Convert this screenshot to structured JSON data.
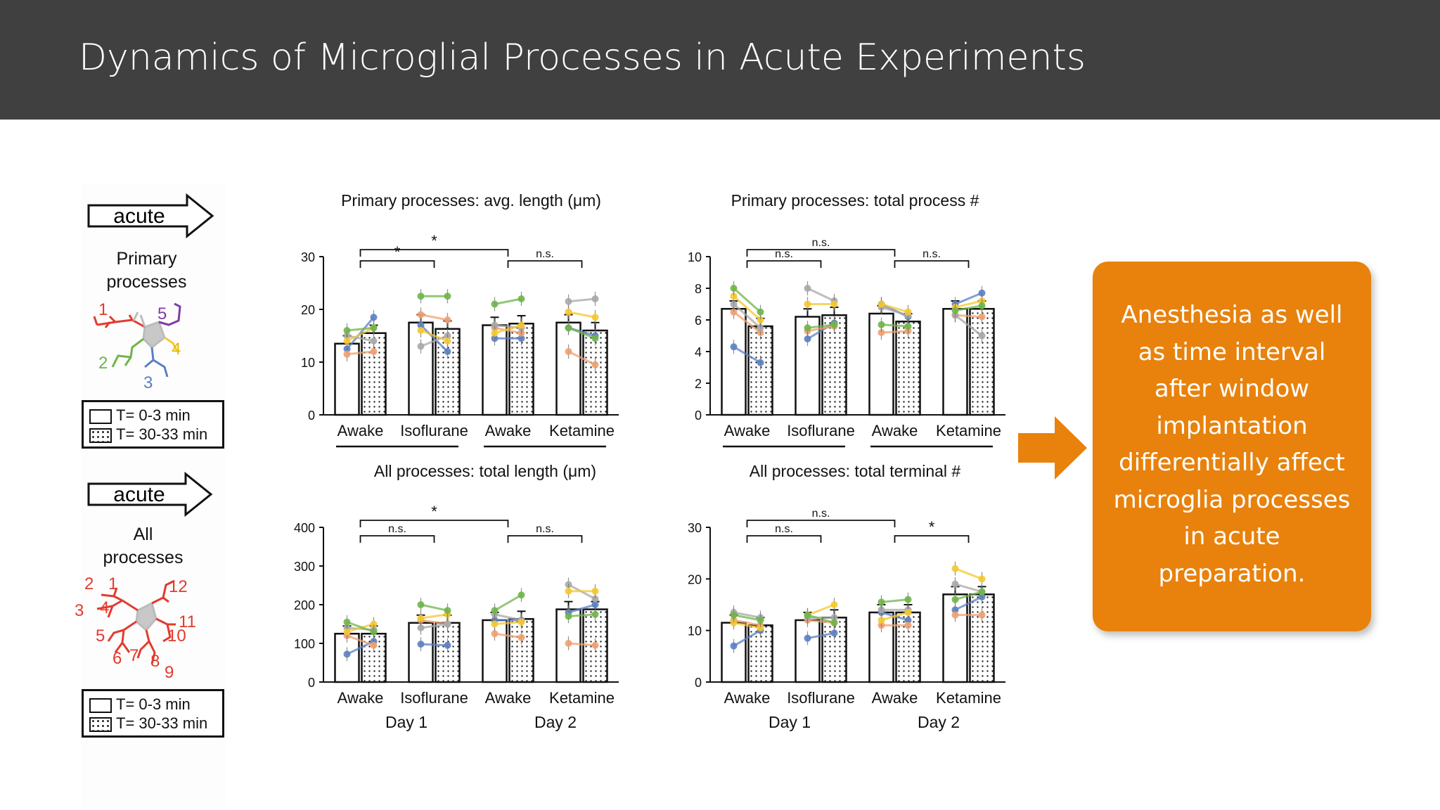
{
  "slide": {
    "title": "Dynamics of Microglial Processes in Acute Experiments"
  },
  "left_panel": {
    "top": {
      "arrow_label": "acute",
      "label_line1": "Primary",
      "label_line2": "processes",
      "diagram_numbers": [
        "1",
        "2",
        "3",
        "4",
        "5"
      ],
      "legend": [
        "T= 0-3 min",
        "T= 30-33 min"
      ]
    },
    "bottom": {
      "arrow_label": "acute",
      "label_line1": "All",
      "label_line2": "processes",
      "diagram_numbers": [
        "1",
        "2",
        "3",
        "4",
        "5",
        "6",
        "7",
        "8",
        "9",
        "10",
        "11",
        "12"
      ],
      "legend": [
        "T= 0-3 min",
        "T= 30-33 min"
      ]
    }
  },
  "day_labels": [
    "Day 1",
    "Day 2"
  ],
  "callout": {
    "lines": [
      "Anesthesia as well",
      "as time interval",
      "after window",
      "implantation",
      "differentially affect",
      "microglia processes",
      "in acute",
      "preparation."
    ],
    "color": "#e8820c"
  },
  "colors": {
    "header": "#404040",
    "series": [
      "#5b7fc4",
      "#f0a070",
      "#a8a8a8",
      "#f5c830",
      "#6fb54a"
    ]
  },
  "chart_data": [
    {
      "type": "bar",
      "title": "Primary processes: avg. length (μm)",
      "categories": [
        "Awake",
        "Isoflurane",
        "Awake",
        "Ketamine"
      ],
      "groups": [
        "Day 1",
        "Day 1",
        "Day 2",
        "Day 2"
      ],
      "yticks": [
        "0",
        "10",
        "20",
        "30"
      ],
      "ylim": [
        0,
        30
      ],
      "series": [
        {
          "name": "T= 0-3 min",
          "values": [
            13.5,
            17.5,
            17,
            17.5
          ]
        },
        {
          "name": "T= 30-33 min",
          "values": [
            15.5,
            16.3,
            17.3,
            16
          ]
        }
      ],
      "individual_lines": [
        [
          [
            12.5,
            18.5
          ],
          [
            17,
            12
          ],
          [
            14.5,
            14.5
          ],
          [
            16.5,
            15
          ]
        ],
        [
          [
            11.5,
            12
          ],
          [
            19,
            18
          ],
          [
            16.5,
            15.5
          ],
          [
            12,
            9.5
          ]
        ],
        [
          [
            15,
            14
          ],
          [
            13,
            15
          ],
          [
            17,
            16.5
          ],
          [
            21.5,
            22
          ]
        ],
        [
          [
            14,
            16.5
          ],
          [
            16,
            14
          ],
          [
            15.5,
            17
          ],
          [
            19.5,
            18.5
          ]
        ],
        [
          [
            16,
            16.5
          ],
          [
            22.5,
            22.5
          ],
          [
            21,
            22
          ],
          [
            16.5,
            14.5
          ]
        ]
      ],
      "significance": [
        {
          "label": "*",
          "from": 0,
          "to": 2
        },
        {
          "label": "*",
          "from": 0,
          "to": 1
        },
        {
          "label": "n.s.",
          "from": 2,
          "to": 3
        }
      ]
    },
    {
      "type": "bar",
      "title": "Primary processes: total process #",
      "categories": [
        "Awake",
        "Isoflurane",
        "Awake",
        "Ketamine"
      ],
      "groups": [
        "Day 1",
        "Day 1",
        "Day 2",
        "Day 2"
      ],
      "yticks": [
        "0",
        "2",
        "4",
        "6",
        "8",
        "10"
      ],
      "ylim": [
        0,
        10
      ],
      "series": [
        {
          "name": "T= 0-3 min",
          "values": [
            6.7,
            6.2,
            6.4,
            6.7
          ]
        },
        {
          "name": "T= 30-33 min",
          "values": [
            5.6,
            6.3,
            5.9,
            6.7
          ]
        }
      ],
      "individual_lines": [
        [
          [
            4.3,
            3.3
          ],
          [
            4.8,
            5.8
          ],
          [
            7,
            6.2
          ],
          [
            7,
            7.7
          ]
        ],
        [
          [
            6.5,
            5.2
          ],
          [
            5.3,
            5.6
          ],
          [
            5.2,
            5.3
          ],
          [
            6.3,
            6.2
          ]
        ],
        [
          [
            7,
            5.5
          ],
          [
            8,
            7.2
          ],
          [
            6.8,
            6.3
          ],
          [
            6.3,
            5
          ]
        ],
        [
          [
            7.5,
            6
          ],
          [
            7,
            7
          ],
          [
            7,
            6.5
          ],
          [
            6.8,
            7.2
          ]
        ],
        [
          [
            8,
            6.5
          ],
          [
            5.5,
            5.7
          ],
          [
            5.7,
            5.6
          ],
          [
            6.6,
            6.9
          ]
        ]
      ],
      "significance": [
        {
          "label": "n.s.",
          "from": 0,
          "to": 2
        },
        {
          "label": "n.s.",
          "from": 0,
          "to": 1
        },
        {
          "label": "n.s.",
          "from": 2,
          "to": 3
        }
      ]
    },
    {
      "type": "bar",
      "title": "All processes: total length (μm)",
      "categories": [
        "Awake",
        "Isoflurane",
        "Awake",
        "Ketamine"
      ],
      "groups": [
        "Day 1",
        "Day 1",
        "Day 2",
        "Day 2"
      ],
      "yticks": [
        "0",
        "100",
        "200",
        "300",
        "400"
      ],
      "ylim": [
        0,
        400
      ],
      "series": [
        {
          "name": "T= 0-3 min",
          "values": [
            125,
            153,
            160,
            188
          ]
        },
        {
          "name": "T= 30-33 min",
          "values": [
            125,
            153,
            163,
            188
          ]
        }
      ],
      "individual_lines": [
        [
          [
            72,
            105
          ],
          [
            98,
            95
          ],
          [
            160,
            160
          ],
          [
            180,
            200
          ]
        ],
        [
          [
            120,
            95
          ],
          [
            160,
            150
          ],
          [
            125,
            115
          ],
          [
            100,
            95
          ]
        ],
        [
          [
            140,
            135
          ],
          [
            140,
            150
          ],
          [
            175,
            160
          ],
          [
            252,
            215
          ]
        ],
        [
          [
            130,
            150
          ],
          [
            165,
            175
          ],
          [
            150,
            155
          ],
          [
            235,
            235
          ]
        ],
        [
          [
            155,
            130
          ],
          [
            200,
            185
          ],
          [
            185,
            225
          ],
          [
            170,
            175
          ]
        ]
      ],
      "significance": [
        {
          "label": "*",
          "from": 0,
          "to": 2
        },
        {
          "label": "n.s.",
          "from": 0,
          "to": 1
        },
        {
          "label": "n.s.",
          "from": 2,
          "to": 3
        }
      ]
    },
    {
      "type": "bar",
      "title": "All processes: total terminal #",
      "categories": [
        "Awake",
        "Isoflurane",
        "Awake",
        "Ketamine"
      ],
      "groups": [
        "Day 1",
        "Day 1",
        "Day 2",
        "Day 2"
      ],
      "yticks": [
        "0",
        "10",
        "20",
        "30"
      ],
      "ylim": [
        0,
        30
      ],
      "series": [
        {
          "name": "T= 0-3 min",
          "values": [
            11.5,
            12,
            13.5,
            17
          ]
        },
        {
          "name": "T= 30-33 min",
          "values": [
            11,
            12.5,
            13.5,
            17
          ]
        }
      ],
      "individual_lines": [
        [
          [
            7,
            10
          ],
          [
            8.5,
            9.5
          ],
          [
            13.5,
            12
          ],
          [
            14,
            16.5
          ]
        ],
        [
          [
            12,
            11
          ],
          [
            12,
            11.5
          ],
          [
            11,
            11
          ],
          [
            13,
            13
          ]
        ],
        [
          [
            13.5,
            12.5
          ],
          [
            12.5,
            12.5
          ],
          [
            14,
            14
          ],
          [
            19,
            17.5
          ]
        ],
        [
          [
            11.5,
            10.5
          ],
          [
            13,
            15
          ],
          [
            12,
            13.5
          ],
          [
            22,
            20
          ]
        ],
        [
          [
            13,
            12
          ],
          [
            13,
            11.5
          ],
          [
            15.5,
            16
          ],
          [
            16,
            17.5
          ]
        ]
      ],
      "significance": [
        {
          "label": "n.s.",
          "from": 0,
          "to": 2
        },
        {
          "label": "n.s.",
          "from": 0,
          "to": 1
        },
        {
          "label": "*",
          "from": 2,
          "to": 3
        }
      ]
    }
  ]
}
